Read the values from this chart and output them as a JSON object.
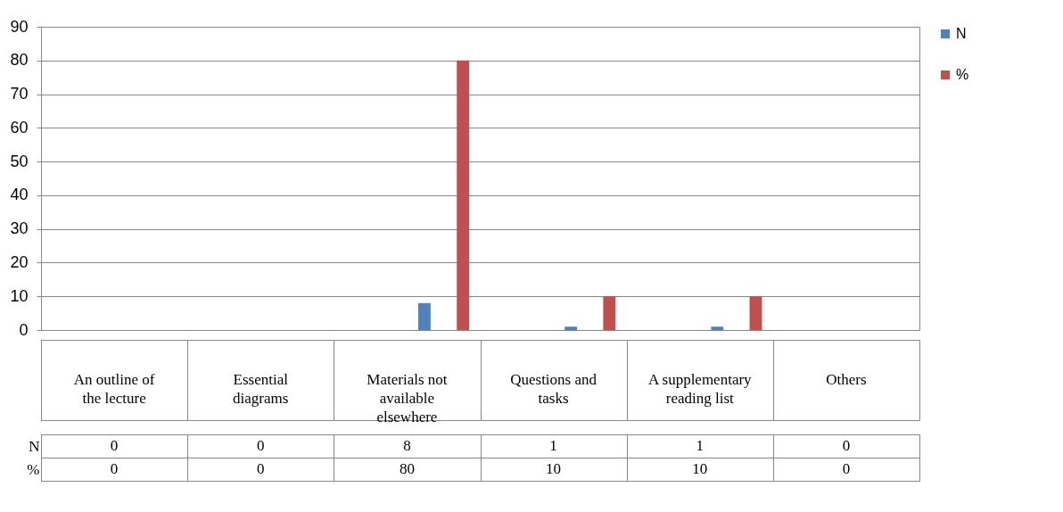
{
  "chart_data": {
    "type": "bar",
    "categories": [
      "An outline of the lecture",
      "Essential diagrams",
      "Materials not available elsewhere",
      "Questions and tasks",
      "A supplementary reading list",
      "Others"
    ],
    "series": [
      {
        "name": "N",
        "color": "#4f81bd",
        "values": [
          0,
          0,
          8,
          1,
          1,
          0
        ]
      },
      {
        "name": "%",
        "color": "#c0504d",
        "values": [
          0,
          0,
          80,
          10,
          10,
          0
        ]
      }
    ],
    "ylim": [
      0,
      90
    ],
    "yticks": [
      0,
      10,
      20,
      30,
      40,
      50,
      60,
      70,
      80,
      90
    ],
    "grid": "y",
    "legend": "right",
    "data_labels": true
  }
}
